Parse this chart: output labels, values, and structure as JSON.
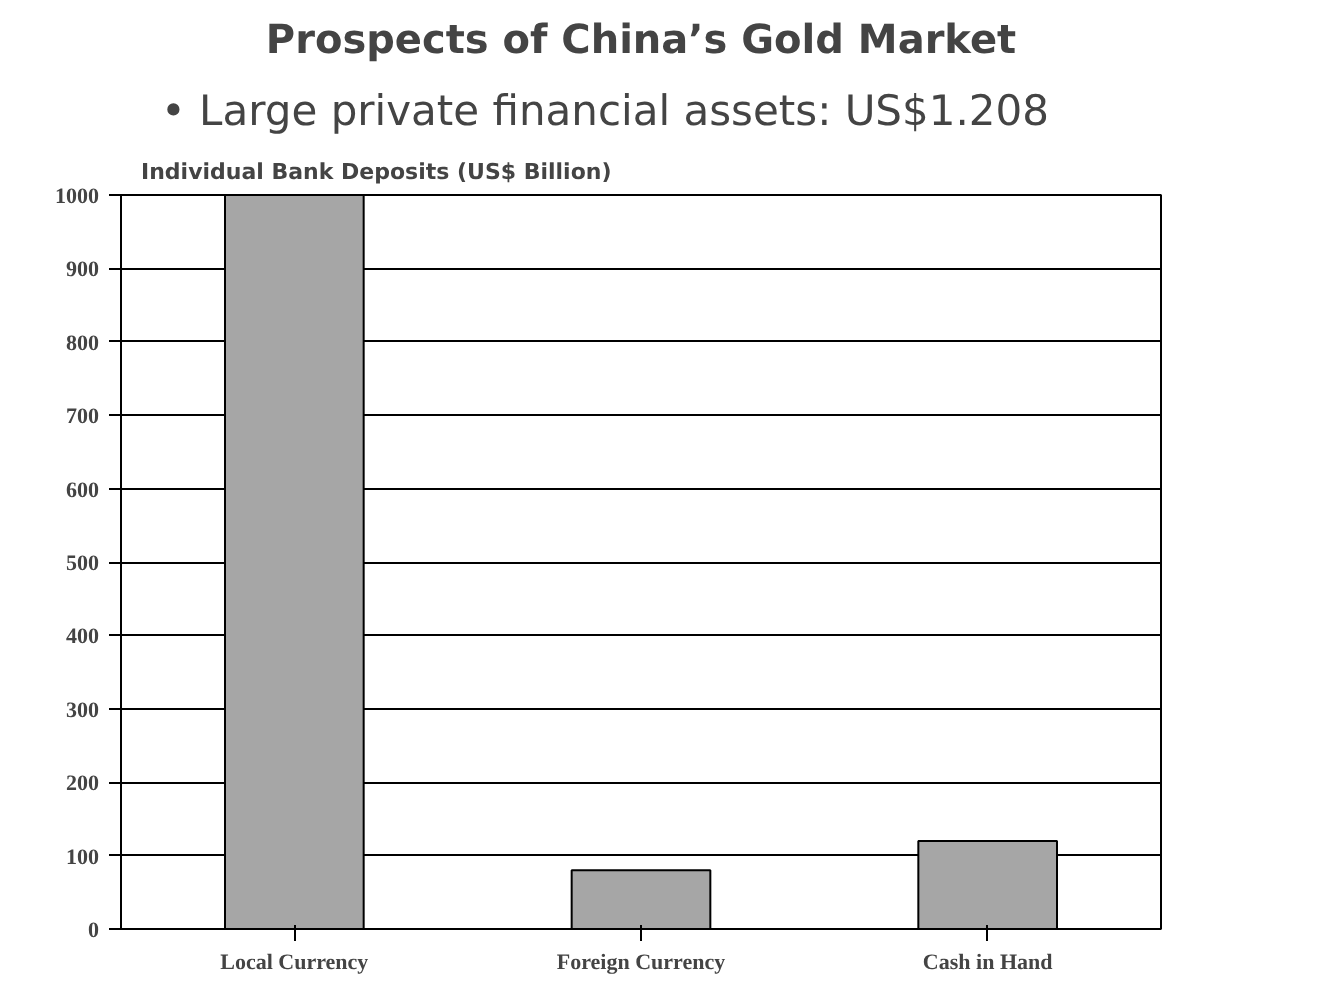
{
  "chart_data": {
    "type": "bar",
    "title": "Prospects of China’s Gold Market",
    "subtitle": "• Large private financial assets: US$1.208",
    "annotations": [
      "Individual Bank Deposits (US$ Billion)"
    ],
    "categories": [
      "Local Currency",
      "Foreign Currency",
      "Cash in Hand"
    ],
    "values": [
      1000,
      80,
      120
    ],
    "color": "#a6a6a6",
    "ylim": [
      0,
      1000
    ],
    "yticks": [
      0,
      100,
      200,
      300,
      400,
      500,
      600,
      700,
      800,
      900,
      1000
    ],
    "grid": "y"
  }
}
